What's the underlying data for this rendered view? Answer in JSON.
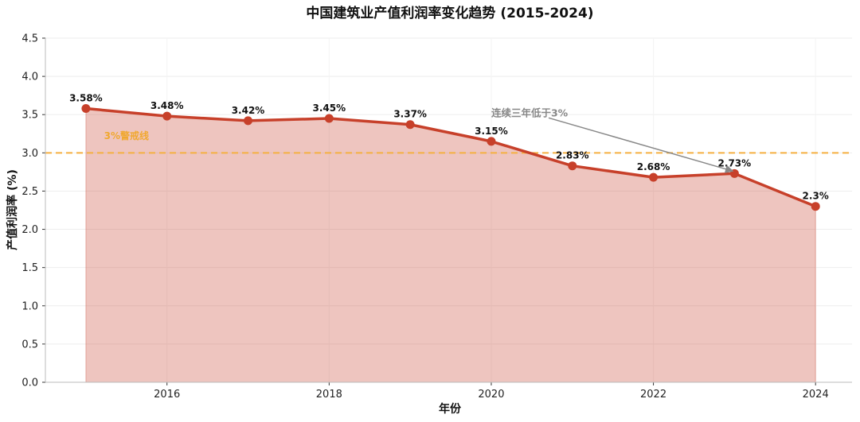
{
  "chart_data": {
    "type": "line",
    "title": "中国建筑业产值利润率变化趋势 (2015-2024)",
    "xlabel": "年份",
    "ylabel": "产值利润率 (%)",
    "x": [
      2015,
      2016,
      2017,
      2018,
      2019,
      2020,
      2021,
      2022,
      2023,
      2024
    ],
    "series": [
      {
        "name": "产值利润率",
        "values": [
          3.58,
          3.48,
          3.42,
          3.45,
          3.37,
          3.15,
          2.83,
          2.68,
          2.73,
          2.3
        ],
        "labels": [
          "3.58%",
          "3.48%",
          "3.42%",
          "3.45%",
          "3.37%",
          "3.15%",
          "2.83%",
          "2.68%",
          "2.73%",
          "2.3%"
        ],
        "color": "#c7402a",
        "fill": true
      }
    ],
    "xlim": [
      2014.5,
      2024.45
    ],
    "ylim": [
      0,
      4.5
    ],
    "xticks": [
      2016,
      2018,
      2020,
      2022,
      2024
    ],
    "xtick_labels": [
      "2016",
      "2018",
      "2020",
      "2022",
      "2024"
    ],
    "yticks": [
      0.0,
      0.5,
      1.0,
      1.5,
      2.0,
      2.5,
      3.0,
      3.5,
      4.0,
      4.5
    ],
    "ytick_labels": [
      "0.0",
      "0.5",
      "1.0",
      "1.5",
      "2.0",
      "2.5",
      "3.0",
      "3.5",
      "4.0",
      "4.5"
    ],
    "grid": true,
    "reference_line": {
      "y": 3.0,
      "label": "3%警戒线",
      "color": "#f5b041",
      "label_x": 2015.5,
      "label_y": 3.18
    },
    "annotation": {
      "text": "连续三年低于3%",
      "text_x": 2020,
      "text_y": 3.52,
      "target_x": 2023,
      "target_y": 2.73,
      "color": "#888888"
    }
  }
}
